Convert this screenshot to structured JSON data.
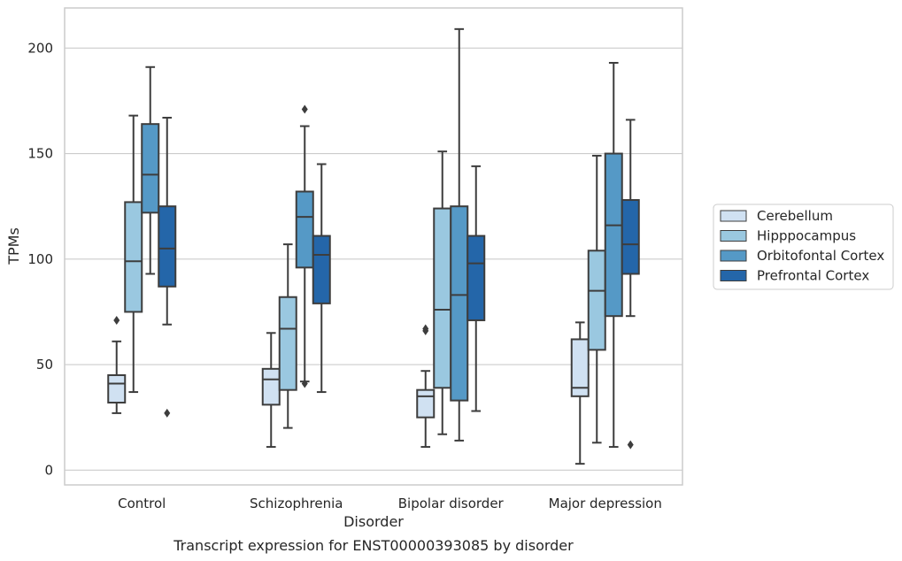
{
  "caption": "Transcript expression for ENST00000393085 by disorder",
  "chart_data": {
    "type": "box",
    "xlabel": "Disorder",
    "ylabel": "TPMs",
    "ylim": [
      -7,
      219
    ],
    "yticks": [
      0,
      50,
      100,
      150,
      200
    ],
    "grid": "horizontal",
    "legend_position": "right",
    "categories": [
      "Control",
      "Schizophrenia",
      "Bipolar disorder",
      "Major depression"
    ],
    "series": [
      {
        "name": "Cerebellum",
        "color": "#d0e1f2",
        "boxes": [
          {
            "whisker_low": 27,
            "q1": 32,
            "median": 41,
            "q3": 45,
            "whisker_high": 61,
            "outliers": [
              71
            ]
          },
          {
            "whisker_low": 11,
            "q1": 31,
            "median": 43,
            "q3": 48,
            "whisker_high": 65,
            "outliers": []
          },
          {
            "whisker_low": 11,
            "q1": 25,
            "median": 35,
            "q3": 38,
            "whisker_high": 47,
            "outliers": [
              66,
              67
            ]
          },
          {
            "whisker_low": 3,
            "q1": 35,
            "median": 39,
            "q3": 62,
            "whisker_high": 70,
            "outliers": []
          }
        ]
      },
      {
        "name": "Hipppocampus",
        "color": "#9ac8e0",
        "boxes": [
          {
            "whisker_low": 37,
            "q1": 75,
            "median": 99,
            "q3": 127,
            "whisker_high": 168,
            "outliers": []
          },
          {
            "whisker_low": 20,
            "q1": 38,
            "median": 67,
            "q3": 82,
            "whisker_high": 107,
            "outliers": []
          },
          {
            "whisker_low": 17,
            "q1": 39,
            "median": 76,
            "q3": 124,
            "whisker_high": 151,
            "outliers": []
          },
          {
            "whisker_low": 13,
            "q1": 57,
            "median": 85,
            "q3": 104,
            "whisker_high": 149,
            "outliers": []
          }
        ]
      },
      {
        "name": "Orbitofontal Cortex",
        "color": "#5599c6",
        "boxes": [
          {
            "whisker_low": 93,
            "q1": 122,
            "median": 140,
            "q3": 164,
            "whisker_high": 191,
            "outliers": []
          },
          {
            "whisker_low": 42,
            "q1": 96,
            "median": 120,
            "q3": 132,
            "whisker_high": 163,
            "outliers": [
              41,
              171
            ]
          },
          {
            "whisker_low": 14,
            "q1": 33,
            "median": 83,
            "q3": 125,
            "whisker_high": 209,
            "outliers": []
          },
          {
            "whisker_low": 11,
            "q1": 73,
            "median": 116,
            "q3": 150,
            "whisker_high": 193,
            "outliers": []
          }
        ]
      },
      {
        "name": "Prefrontal Cortex",
        "color": "#2466a9",
        "boxes": [
          {
            "whisker_low": 69,
            "q1": 87,
            "median": 105,
            "q3": 125,
            "whisker_high": 167,
            "outliers": [
              27
            ]
          },
          {
            "whisker_low": 37,
            "q1": 79,
            "median": 102,
            "q3": 111,
            "whisker_high": 145,
            "outliers": []
          },
          {
            "whisker_low": 28,
            "q1": 71,
            "median": 98,
            "q3": 111,
            "whisker_high": 144,
            "outliers": []
          },
          {
            "whisker_low": 73,
            "q1": 93,
            "median": 107,
            "q3": 128,
            "whisker_high": 166,
            "outliers": [
              12
            ]
          }
        ]
      }
    ]
  }
}
